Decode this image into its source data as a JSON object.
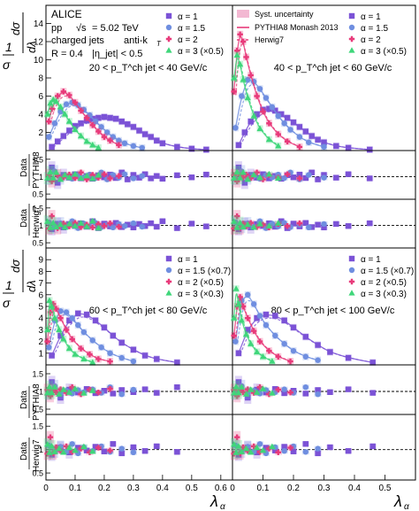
{
  "chart_data": {
    "type": "scatter",
    "experiment": "ALICE",
    "system": "pp",
    "energy_prefix": "√s",
    "energy_value": "= 5.02 TeV",
    "jets": "charged jets",
    "algo": "anti-k",
    "radius": "R = 0.4",
    "eta_cut": "|η_jet| < 0.5",
    "xlabel": "λ_α",
    "ylabel_main": "1/σ dσ/dλ_α",
    "ylabel_ratio_pythia": [
      "Data",
      "PYTHIA8"
    ],
    "ylabel_ratio_herwig": [
      "Data",
      "Herwig7"
    ],
    "legend_models": [
      "Syst. uncertainty",
      "PYTHIA8 Monash 2013",
      "Herwig7"
    ],
    "colors": {
      "a1": "#7b52d6",
      "a15": "#6f8ee0",
      "a2": "#e83a7a",
      "a3": "#3fd67a",
      "syst": "#f3b8d2"
    },
    "panels": [
      {
        "id": "tl",
        "range_label": "20 < p_T^ch jet < 40 GeV/c",
        "xlim": [
          0,
          0.64
        ],
        "ylim": [
          0,
          16
        ],
        "yticks": [
          2,
          4,
          6,
          8,
          10,
          12,
          14
        ],
        "xticks": [],
        "legend": [
          "α = 1",
          "α = 1.5",
          "α = 2",
          "α = 3 (×0.5)"
        ],
        "ratio_ticks": [
          "1.5",
          "1",
          "0.5"
        ],
        "series": [
          {
            "name": "α = 1",
            "color": "#7b52d6",
            "marker": "square",
            "x": [
              0.02,
              0.04,
              0.06,
              0.08,
              0.1,
              0.12,
              0.14,
              0.16,
              0.18,
              0.2,
              0.22,
              0.24,
              0.26,
              0.28,
              0.3,
              0.32,
              0.34,
              0.36,
              0.38,
              0.4,
              0.45,
              0.5,
              0.55
            ],
            "y": [
              0.4,
              1.0,
              1.6,
              2.2,
              2.7,
              3.0,
              3.3,
              3.5,
              3.6,
              3.7,
              3.6,
              3.5,
              3.2,
              2.9,
              2.6,
              2.2,
              1.8,
              1.5,
              1.1,
              0.8,
              0.4,
              0.2,
              0.1
            ]
          },
          {
            "name": "α = 1.5",
            "color": "#6f8ee0",
            "marker": "circle",
            "x": [
              0.01,
              0.03,
              0.05,
              0.07,
              0.09,
              0.11,
              0.13,
              0.15,
              0.17,
              0.19,
              0.21,
              0.23,
              0.25,
              0.27,
              0.3,
              0.33
            ],
            "y": [
              1.5,
              3.0,
              4.3,
              5.1,
              5.3,
              5.0,
              4.5,
              3.9,
              3.2,
              2.6,
              2.0,
              1.5,
              1.1,
              0.8,
              0.5,
              0.3
            ]
          },
          {
            "name": "α = 2",
            "color": "#e83a7a",
            "marker": "cross",
            "x": [
              0.01,
              0.02,
              0.04,
              0.06,
              0.08,
              0.1,
              0.12,
              0.14,
              0.16,
              0.18,
              0.2,
              0.22,
              0.25
            ],
            "y": [
              3.2,
              4.6,
              6.0,
              6.5,
              6.1,
              5.3,
              4.4,
              3.6,
              2.8,
              2.1,
              1.5,
              1.1,
              0.6
            ]
          },
          {
            "name": "α = 3 (×0.5)",
            "color": "#3fd67a",
            "marker": "triangle",
            "x": [
              0.005,
              0.015,
              0.025,
              0.035,
              0.05,
              0.065,
              0.08,
              0.1,
              0.12,
              0.14,
              0.16,
              0.18
            ],
            "y": [
              4.0,
              5.2,
              5.6,
              5.4,
              4.8,
              4.0,
              3.2,
              2.3,
              1.6,
              1.0,
              0.6,
              0.3
            ]
          }
        ]
      },
      {
        "id": "tr",
        "range_label": "40 < p_T^ch jet < 60 GeV/c",
        "xlim": [
          0,
          0.6
        ],
        "ylim": [
          0,
          16
        ],
        "yticks": [],
        "xticks": [],
        "legend": [
          "α = 1",
          "α = 1.5",
          "α = 2",
          "α = 3 (×0.5)"
        ],
        "ratio_ticks": [],
        "series": [
          {
            "name": "α = 1",
            "color": "#7b52d6",
            "marker": "square",
            "x": [
              0.02,
              0.04,
              0.06,
              0.08,
              0.1,
              0.12,
              0.14,
              0.16,
              0.18,
              0.2,
              0.22,
              0.24,
              0.26,
              0.28,
              0.3,
              0.34,
              0.38,
              0.45
            ],
            "y": [
              0.6,
              2.0,
              3.2,
              4.0,
              4.5,
              4.6,
              4.4,
              4.0,
              3.6,
              3.1,
              2.6,
              2.1,
              1.6,
              1.2,
              0.9,
              0.5,
              0.3,
              0.1
            ]
          },
          {
            "name": "α = 1.5",
            "color": "#6f8ee0",
            "marker": "circle",
            "x": [
              0.01,
              0.03,
              0.05,
              0.07,
              0.09,
              0.11,
              0.13,
              0.15,
              0.17,
              0.19,
              0.22,
              0.25,
              0.3
            ],
            "y": [
              2.5,
              6.0,
              7.8,
              7.6,
              6.8,
              5.8,
              4.8,
              3.8,
              3.0,
              2.3,
              1.5,
              0.9,
              0.4
            ]
          },
          {
            "name": "α = 2",
            "color": "#e83a7a",
            "marker": "cross",
            "x": [
              0.005,
              0.015,
              0.025,
              0.035,
              0.045,
              0.06,
              0.08,
              0.1,
              0.12,
              0.15,
              0.18,
              0.22
            ],
            "y": [
              6.5,
              11.0,
              12.8,
              12.0,
              10.3,
              8.3,
              6.0,
              4.3,
              3.0,
              1.8,
              1.0,
              0.4
            ]
          },
          {
            "name": "α = 3 (×0.5)",
            "color": "#3fd67a",
            "marker": "triangle",
            "x": [
              0.005,
              0.015,
              0.025,
              0.035,
              0.05,
              0.07,
              0.09,
              0.12,
              0.15
            ],
            "y": [
              8.0,
              10.5,
              9.5,
              7.8,
              5.8,
              3.8,
              2.4,
              1.2,
              0.5
            ]
          }
        ]
      },
      {
        "id": "bl",
        "range_label": "60 < p_T^ch jet < 80 GeV/c",
        "xlim": [
          0,
          0.64
        ],
        "ylim": [
          0,
          10
        ],
        "yticks": [
          1,
          2,
          3,
          4,
          5,
          6,
          7,
          8,
          9
        ],
        "xticks": [
          "0",
          "0.1",
          "0.2",
          "0.3",
          "0.4",
          "0.5",
          "0.6"
        ],
        "legend": [
          "α = 1",
          "α = 1.5 (×0.7)",
          "α = 2 (×0.5)",
          "α = 3 (×0.3)"
        ],
        "ratio_ticks": [
          "1.5",
          "1",
          "0.5"
        ],
        "series": [
          {
            "name": "α = 1",
            "color": "#7b52d6",
            "marker": "square",
            "x": [
              0.02,
              0.05,
              0.08,
              0.11,
              0.14,
              0.17,
              0.2,
              0.23,
              0.26,
              0.3,
              0.34,
              0.38,
              0.45
            ],
            "y": [
              0.8,
              2.5,
              3.8,
              4.4,
              4.3,
              3.8,
              3.2,
              2.5,
              1.9,
              1.3,
              0.8,
              0.5,
              0.2
            ]
          },
          {
            "name": "α = 1.5 (×0.7)",
            "color": "#6f8ee0",
            "marker": "circle",
            "x": [
              0.01,
              0.03,
              0.05,
              0.07,
              0.09,
              0.11,
              0.13,
              0.16,
              0.19,
              0.22,
              0.26,
              0.3
            ],
            "y": [
              1.5,
              3.8,
              4.6,
              4.5,
              4.0,
              3.4,
              2.8,
              2.1,
              1.5,
              1.0,
              0.6,
              0.3
            ]
          },
          {
            "name": "α = 2 (×0.5)",
            "color": "#e83a7a",
            "marker": "cross",
            "x": [
              0.005,
              0.015,
              0.025,
              0.035,
              0.05,
              0.07,
              0.09,
              0.12,
              0.15,
              0.18,
              0.22
            ],
            "y": [
              2.0,
              4.5,
              5.2,
              4.8,
              4.0,
              3.0,
              2.2,
              1.4,
              0.9,
              0.5,
              0.3
            ]
          },
          {
            "name": "α = 3 (×0.3)",
            "color": "#3fd67a",
            "marker": "triangle",
            "x": [
              0.005,
              0.012,
              0.02,
              0.03,
              0.045,
              0.06,
              0.08,
              0.1,
              0.13,
              0.16
            ],
            "y": [
              3.0,
              5.5,
              5.0,
              4.0,
              3.0,
              2.2,
              1.4,
              0.9,
              0.5,
              0.2
            ]
          }
        ]
      },
      {
        "id": "br",
        "range_label": "80 < p_T^ch jet < 100 GeV/c",
        "xlim": [
          0,
          0.6
        ],
        "ylim": [
          0,
          10
        ],
        "yticks": [],
        "xticks": [
          "0",
          "0.1",
          "0.2",
          "0.3",
          "0.4",
          "0.5"
        ],
        "legend": [
          "α = 1",
          "α = 1.5 (×0.7)",
          "α = 2 (×0.5)",
          "α = 3 (×0.3)"
        ],
        "ratio_ticks": [],
        "series": [
          {
            "name": "α = 1",
            "color": "#7b52d6",
            "marker": "square",
            "x": [
              0.02,
              0.05,
              0.08,
              0.11,
              0.14,
              0.17,
              0.2,
              0.24,
              0.28,
              0.32,
              0.38,
              0.46
            ],
            "y": [
              1.0,
              3.0,
              4.0,
              4.3,
              4.2,
              3.8,
              3.2,
              2.4,
              1.7,
              1.1,
              0.6,
              0.2
            ]
          },
          {
            "name": "α = 1.5 (×0.7)",
            "color": "#6f8ee0",
            "marker": "circle",
            "x": [
              0.01,
              0.03,
              0.05,
              0.07,
              0.09,
              0.11,
              0.14,
              0.17,
              0.2,
              0.24,
              0.28
            ],
            "y": [
              2.0,
              5.5,
              6.0,
              5.2,
              4.2,
              3.4,
              2.5,
              1.8,
              1.2,
              0.7,
              0.4
            ]
          },
          {
            "name": "α = 2 (×0.5)",
            "color": "#e83a7a",
            "marker": "cross",
            "x": [
              0.005,
              0.015,
              0.025,
              0.035,
              0.05,
              0.07,
              0.09,
              0.12,
              0.15,
              0.19
            ],
            "y": [
              2.5,
              5.0,
              5.8,
              5.0,
              4.0,
              2.9,
              2.0,
              1.2,
              0.7,
              0.3
            ]
          },
          {
            "name": "α = 3 (×0.3)",
            "color": "#3fd67a",
            "marker": "triangle",
            "x": [
              0.005,
              0.012,
              0.02,
              0.03,
              0.045,
              0.06,
              0.08,
              0.1,
              0.13
            ],
            "y": [
              4.0,
              6.5,
              5.2,
              3.8,
              2.6,
              1.8,
              1.1,
              0.7,
              0.3
            ]
          }
        ]
      }
    ]
  }
}
